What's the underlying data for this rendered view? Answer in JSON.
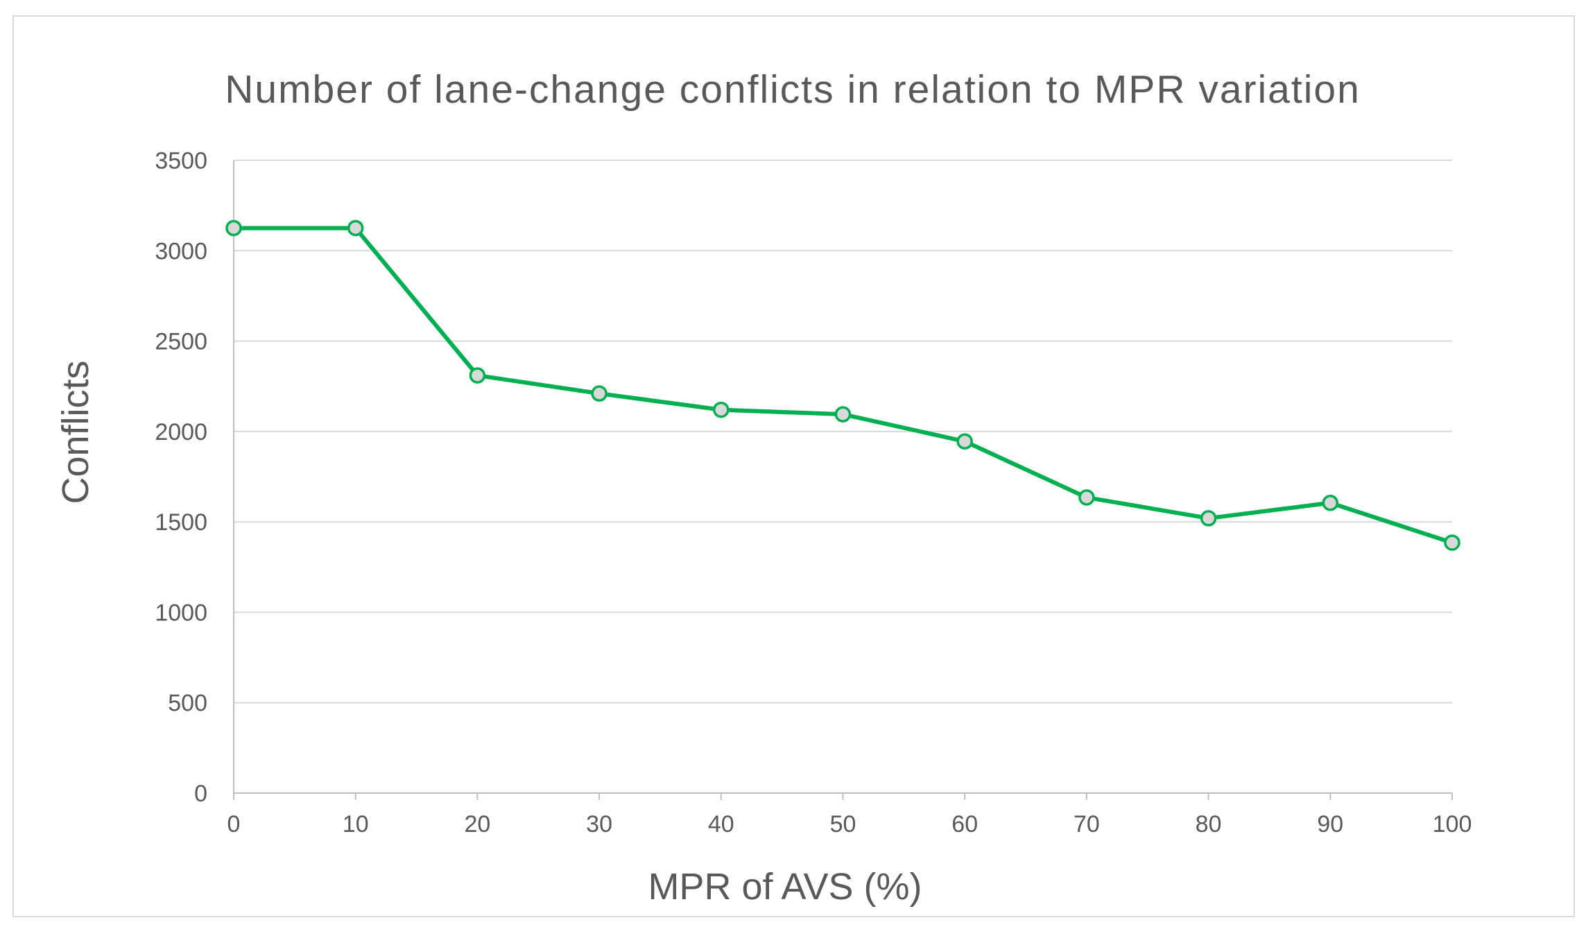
{
  "chart_data": {
    "type": "line",
    "title": "Number of lane-change conflicts in relation to MPR variation",
    "xlabel": "MPR of AVS (%)",
    "ylabel": "Conflicts",
    "x": [
      0,
      10,
      20,
      30,
      40,
      50,
      60,
      70,
      80,
      90,
      100
    ],
    "x_tick_labels": [
      "0",
      "10",
      "20",
      "30",
      "40",
      "50",
      "60",
      "70",
      "80",
      "90",
      "100"
    ],
    "y_tick_labels": [
      "0",
      "500",
      "1000",
      "1500",
      "2000",
      "2500",
      "3000",
      "3500"
    ],
    "y_ticks": [
      0,
      500,
      1000,
      1500,
      2000,
      2500,
      3000,
      3500
    ],
    "xlim": [
      0,
      100
    ],
    "ylim": [
      0,
      3500
    ],
    "grid": "horizontal",
    "legend": "none",
    "series": [
      {
        "name": "Conflicts",
        "values": [
          3125,
          3125,
          2310,
          2210,
          2120,
          2095,
          1945,
          1635,
          1520,
          1605,
          1385
        ]
      }
    ],
    "colors": {
      "line": "#00b050",
      "marker_fill": "#d9d9d9",
      "marker_stroke": "#00b050",
      "text": "#595959",
      "grid": "#d9d9d9"
    }
  }
}
